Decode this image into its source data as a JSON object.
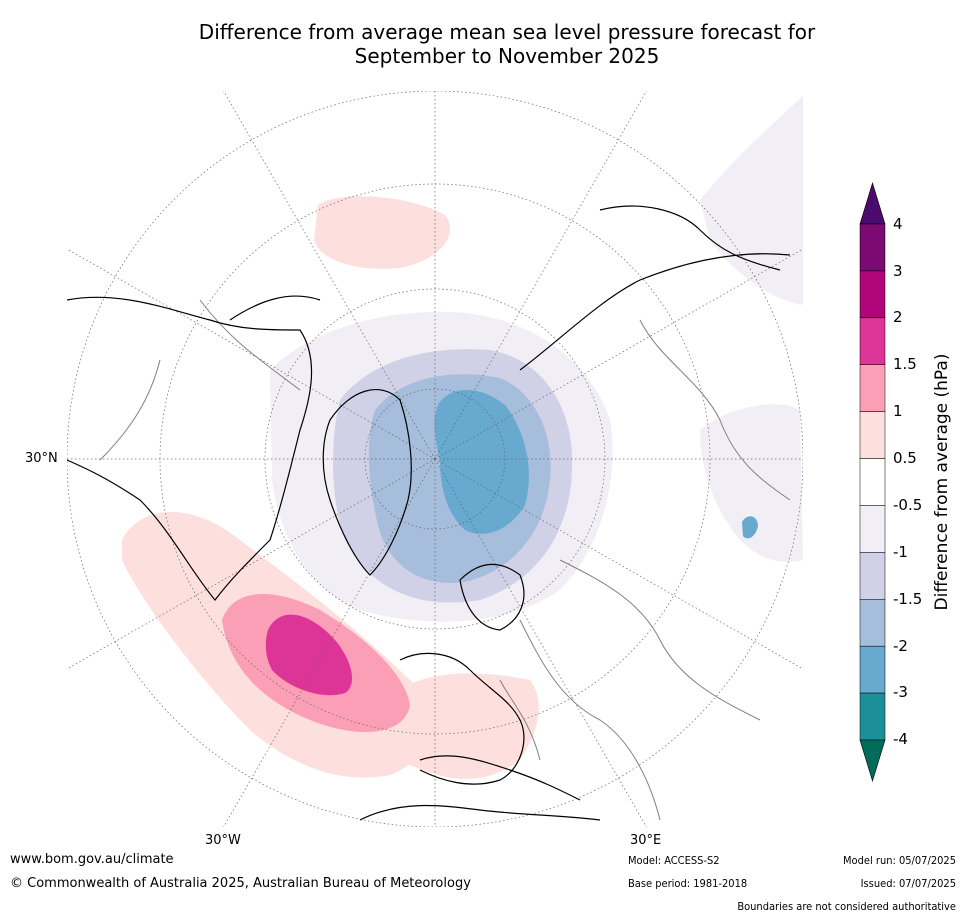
{
  "title_line1": "Difference from average mean sea level pressure forecast for",
  "title_line2": "September to November 2025",
  "map": {
    "projection": "north-polar-stereographic",
    "graticule_labels": [
      "30°N",
      "30°W",
      "30°E"
    ],
    "ocean_color": "#ffffff",
    "coastline_color": "#000000",
    "border_color": "#808080"
  },
  "colorbar": {
    "title": "Difference from average (hPa)",
    "ticks": [
      "4",
      "3",
      "2",
      "1.5",
      "1",
      "0.5",
      "-0.5",
      "-1",
      "-1.5",
      "-2",
      "-3",
      "-4"
    ],
    "bins": [
      {
        "from": 3,
        "to": 4,
        "color": "#7b0a72"
      },
      {
        "from": 2,
        "to": 3,
        "color": "#b0057a"
      },
      {
        "from": 1.5,
        "to": 2,
        "color": "#dd3497"
      },
      {
        "from": 1,
        "to": 1.5,
        "color": "#fa9fb5"
      },
      {
        "from": 0.5,
        "to": 1,
        "color": "#fde0dd"
      },
      {
        "from": -0.5,
        "to": 0.5,
        "color": "#ffffff"
      },
      {
        "from": -1,
        "to": -0.5,
        "color": "#f2eef5"
      },
      {
        "from": -1.5,
        "to": -1,
        "color": "#d0d1e6"
      },
      {
        "from": -2,
        "to": -1.5,
        "color": "#a6bddb"
      },
      {
        "from": -3,
        "to": -2,
        "color": "#67a9cf"
      },
      {
        "from": -4,
        "to": -3,
        "color": "#1c9099"
      }
    ],
    "over_color": "#4b0a6e",
    "under_color": "#016c59"
  },
  "footer": {
    "url": "www.bom.gov.au/climate",
    "copyright": "© Commonwealth of Australia 2025, Australian Bureau of Meteorology",
    "model": "Model: ACCESS-S2",
    "base_period": "Base period: 1981-2018",
    "model_run": "Model run: 05/07/2025",
    "issued": "Issued: 07/07/2025",
    "disclaimer": "Boundaries are not considered authoritative"
  }
}
